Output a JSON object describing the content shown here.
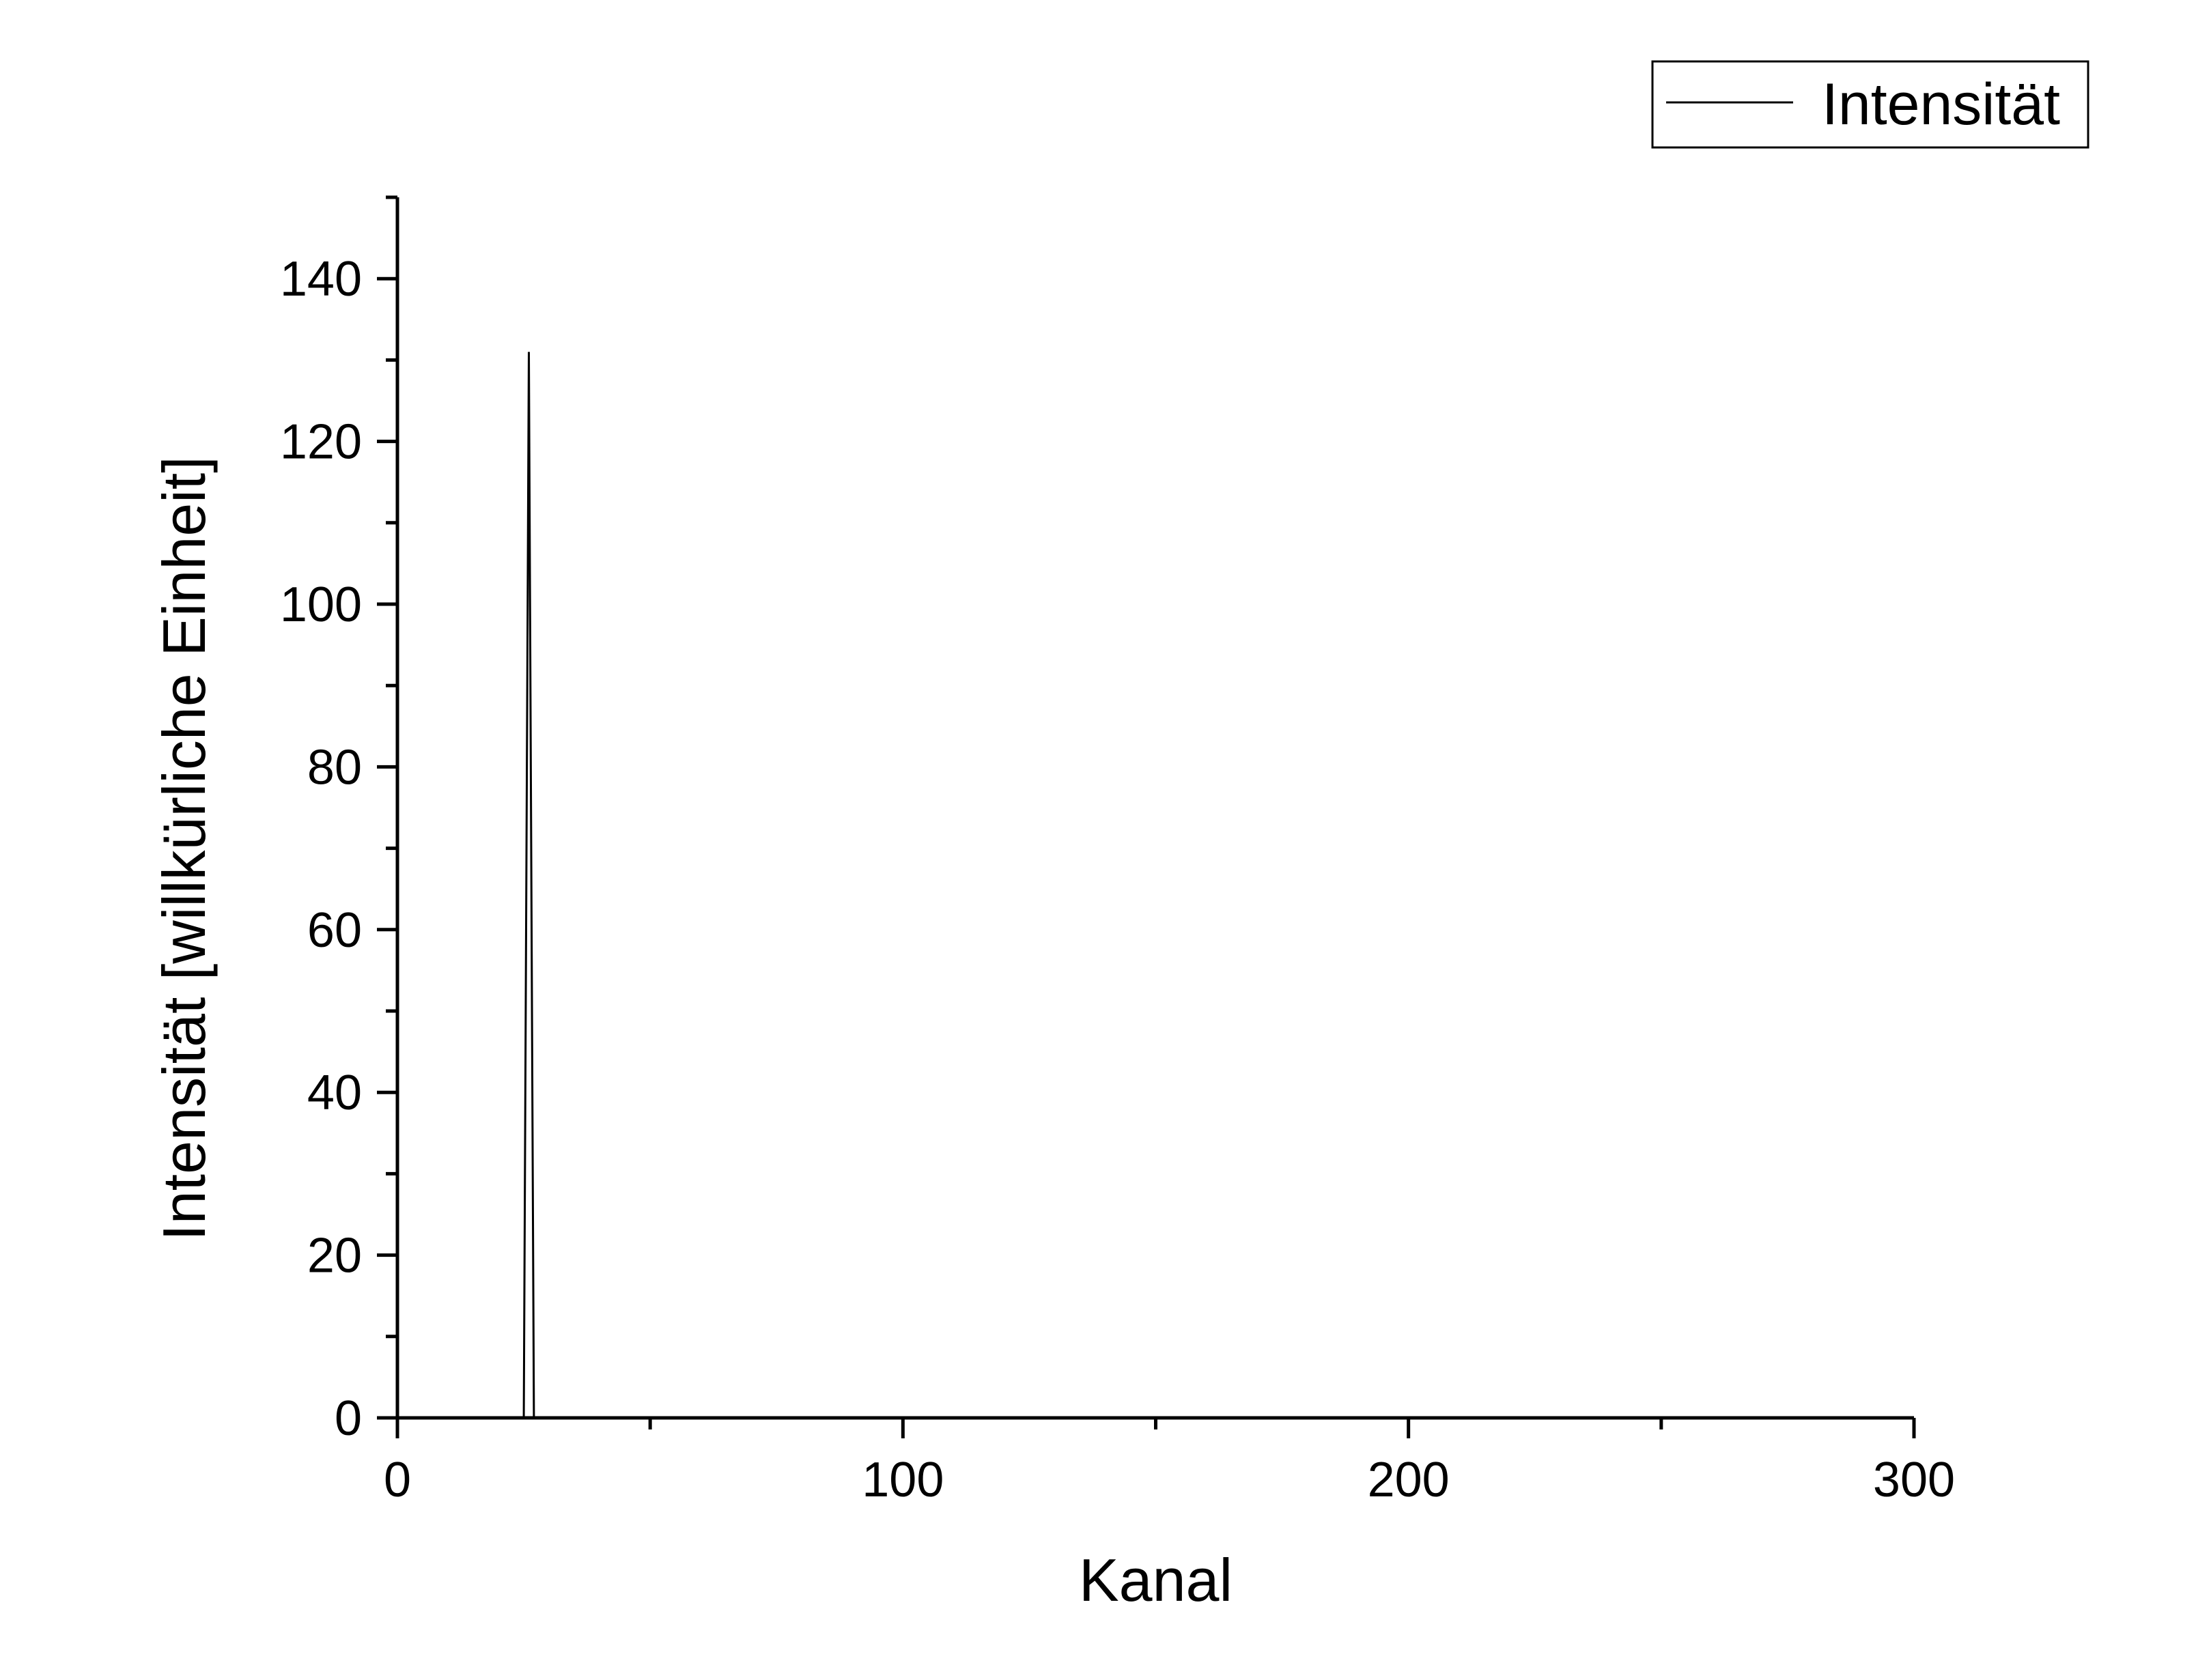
{
  "chart_data": {
    "type": "line",
    "xlabel": "Kanal",
    "ylabel": "Intensität [willkürliche Einheit]",
    "xlim": [
      0,
      300
    ],
    "ylim": [
      0,
      150
    ],
    "x_ticks": [
      0,
      100,
      200,
      300
    ],
    "x_tick_labels": [
      "0",
      "100",
      "200",
      "300"
    ],
    "x_minor_ticks": [
      50,
      150,
      250
    ],
    "y_ticks": [
      0,
      20,
      40,
      60,
      80,
      100,
      120,
      140
    ],
    "y_tick_labels": [
      "0",
      "20",
      "40",
      "60",
      "80",
      "100",
      "120",
      "140"
    ],
    "y_minor_ticks": [
      10,
      30,
      50,
      70,
      90,
      110,
      130,
      150
    ],
    "grid": false,
    "legend_position": "top-right",
    "series": [
      {
        "name": "Intensität",
        "color": "#000000",
        "x": [
          0,
          1,
          2,
          3,
          4,
          5,
          6,
          7,
          8,
          9,
          10,
          11,
          12,
          13,
          14,
          15,
          16,
          17,
          18,
          19,
          20,
          21,
          22,
          23,
          24,
          25,
          26,
          27,
          28,
          29,
          30,
          40,
          50,
          60,
          70,
          80,
          90,
          100,
          110,
          120,
          130,
          140,
          150,
          160,
          170,
          180,
          190,
          200,
          210,
          220,
          230,
          240,
          250,
          260,
          270,
          280,
          290,
          300
        ],
        "y": [
          0,
          0,
          0,
          0,
          0,
          0,
          0,
          0,
          0,
          0,
          0,
          0,
          0,
          0,
          0,
          0,
          0,
          0,
          0,
          0,
          0,
          0,
          0,
          0,
          0,
          0,
          131,
          0,
          0,
          0,
          0,
          0,
          0,
          0,
          0,
          0,
          0,
          0,
          0,
          0,
          0,
          0,
          0,
          0,
          0,
          0,
          0,
          0,
          0,
          0,
          0,
          0,
          0,
          0,
          0,
          0,
          0,
          0
        ]
      }
    ]
  }
}
